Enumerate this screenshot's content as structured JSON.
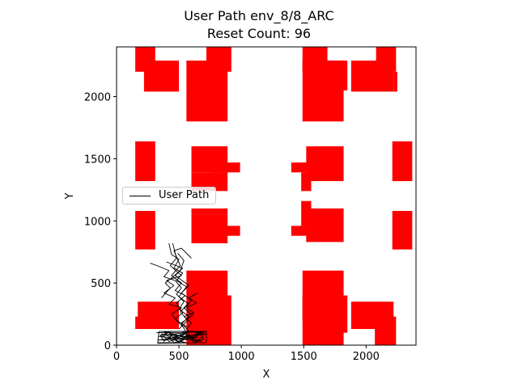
{
  "chart_data": {
    "type": "scatter",
    "title": "User Path env_8/8_ARC",
    "subtitle": "Reset Count: 96",
    "xlabel": "X",
    "ylabel": "Y",
    "xlim": [
      0,
      2400
    ],
    "ylim": [
      0,
      2400
    ],
    "xticks": [
      0,
      500,
      1000,
      1500,
      2000
    ],
    "yticks": [
      0,
      500,
      1000,
      1500,
      2000
    ],
    "grid": false,
    "legend": {
      "position": "center-left",
      "entries": [
        "User Path"
      ]
    },
    "obstacle_color": "#ff0000",
    "path_color": "#000000",
    "obstacles": [
      [
        150,
        1320,
        310,
        1640
      ],
      [
        150,
        770,
        310,
        1080
      ],
      [
        150,
        130,
        240,
        230
      ],
      [
        170,
        130,
        500,
        350
      ],
      [
        220,
        2040,
        500,
        2290
      ],
      [
        150,
        2200,
        310,
        2400
      ],
      [
        560,
        1800,
        890,
        2290
      ],
      [
        720,
        2200,
        920,
        2400
      ],
      [
        560,
        0,
        890,
        600
      ],
      [
        720,
        0,
        920,
        400
      ],
      [
        600,
        1390,
        890,
        1600
      ],
      [
        600,
        1240,
        890,
        1390
      ],
      [
        760,
        1390,
        990,
        1470
      ],
      [
        600,
        820,
        890,
        1050
      ],
      [
        600,
        1050,
        890,
        1100
      ],
      [
        760,
        880,
        990,
        960
      ],
      [
        1490,
        1800,
        1820,
        2290
      ],
      [
        1490,
        2200,
        1690,
        2400
      ],
      [
        1640,
        2050,
        1850,
        2290
      ],
      [
        2220,
        2040,
        2250,
        2200
      ],
      [
        1880,
        2040,
        2220,
        2290
      ],
      [
        2080,
        2200,
        2240,
        2400
      ],
      [
        1520,
        1320,
        1820,
        1600
      ],
      [
        1400,
        1390,
        1550,
        1470
      ],
      [
        1480,
        1240,
        1560,
        1390
      ],
      [
        1520,
        830,
        1820,
        1100
      ],
      [
        1400,
        880,
        1550,
        960
      ],
      [
        1480,
        960,
        1560,
        1160
      ],
      [
        1490,
        0,
        1820,
        600
      ],
      [
        1490,
        200,
        1690,
        400
      ],
      [
        1640,
        100,
        1850,
        400
      ],
      [
        1880,
        130,
        2220,
        350
      ],
      [
        2070,
        0,
        2240,
        230
      ],
      [
        2210,
        1320,
        2370,
        1640
      ],
      [
        2210,
        770,
        2370,
        1080
      ]
    ],
    "paths": [
      [
        [
          450,
          820
        ],
        [
          480,
          700
        ],
        [
          430,
          640
        ],
        [
          520,
          560
        ],
        [
          400,
          520
        ],
        [
          460,
          480
        ],
        [
          380,
          420
        ],
        [
          470,
          380
        ],
        [
          420,
          330
        ],
        [
          520,
          300
        ],
        [
          440,
          250
        ],
        [
          480,
          200
        ],
        [
          560,
          150
        ]
      ],
      [
        [
          400,
          670
        ],
        [
          530,
          620
        ],
        [
          470,
          560
        ],
        [
          580,
          480
        ],
        [
          520,
          420
        ],
        [
          600,
          360
        ],
        [
          540,
          300
        ],
        [
          610,
          240
        ],
        [
          520,
          180
        ],
        [
          580,
          110
        ],
        [
          500,
          60
        ]
      ],
      [
        [
          270,
          660
        ],
        [
          350,
          630
        ],
        [
          420,
          600
        ],
        [
          380,
          550
        ],
        [
          470,
          520
        ],
        [
          520,
          460
        ],
        [
          480,
          410
        ],
        [
          540,
          350
        ],
        [
          500,
          290
        ],
        [
          580,
          230
        ],
        [
          520,
          170
        ],
        [
          560,
          100
        ]
      ],
      [
        [
          600,
          700
        ],
        [
          520,
          780
        ],
        [
          460,
          760
        ],
        [
          510,
          640
        ],
        [
          440,
          560
        ],
        [
          520,
          500
        ],
        [
          470,
          440
        ],
        [
          550,
          400
        ],
        [
          480,
          340
        ],
        [
          530,
          260
        ],
        [
          470,
          210
        ],
        [
          540,
          140
        ]
      ],
      [
        [
          420,
          820
        ],
        [
          440,
          730
        ],
        [
          500,
          690
        ],
        [
          460,
          620
        ],
        [
          530,
          580
        ],
        [
          480,
          520
        ],
        [
          560,
          470
        ],
        [
          500,
          390
        ],
        [
          580,
          330
        ],
        [
          510,
          270
        ],
        [
          570,
          200
        ],
        [
          500,
          130
        ]
      ],
      [
        [
          360,
          380
        ],
        [
          430,
          460
        ],
        [
          390,
          500
        ],
        [
          440,
          540
        ],
        [
          510,
          600
        ],
        [
          540,
          680
        ],
        [
          490,
          740
        ]
      ],
      [
        [
          320,
          100
        ],
        [
          700,
          105
        ],
        [
          420,
          30
        ],
        [
          360,
          90
        ],
        [
          650,
          60
        ],
        [
          330,
          40
        ],
        [
          720,
          95
        ],
        [
          460,
          20
        ],
        [
          380,
          110
        ],
        [
          680,
          30
        ],
        [
          340,
          70
        ],
        [
          600,
          110
        ],
        [
          420,
          50
        ],
        [
          560,
          20
        ],
        [
          330,
          20
        ]
      ],
      [
        [
          340,
          110
        ],
        [
          720,
          112
        ],
        [
          720,
          20
        ],
        [
          330,
          15
        ],
        [
          340,
          110
        ]
      ],
      [
        [
          350,
          80
        ],
        [
          420,
          100
        ],
        [
          480,
          40
        ],
        [
          540,
          100
        ],
        [
          600,
          40
        ],
        [
          660,
          100
        ],
        [
          700,
          50
        ],
        [
          620,
          20
        ],
        [
          560,
          80
        ],
        [
          500,
          20
        ],
        [
          440,
          80
        ],
        [
          380,
          30
        ],
        [
          350,
          80
        ]
      ],
      [
        [
          560,
          130
        ],
        [
          600,
          180
        ],
        [
          540,
          230
        ],
        [
          620,
          260
        ],
        [
          560,
          300
        ],
        [
          640,
          340
        ],
        [
          580,
          380
        ],
        [
          650,
          420
        ]
      ],
      [
        [
          400,
          40
        ],
        [
          460,
          90
        ],
        [
          520,
          30
        ],
        [
          580,
          90
        ],
        [
          640,
          30
        ],
        [
          700,
          80
        ],
        [
          660,
          110
        ],
        [
          600,
          60
        ],
        [
          540,
          110
        ],
        [
          480,
          60
        ],
        [
          420,
          110
        ],
        [
          360,
          60
        ]
      ]
    ]
  }
}
